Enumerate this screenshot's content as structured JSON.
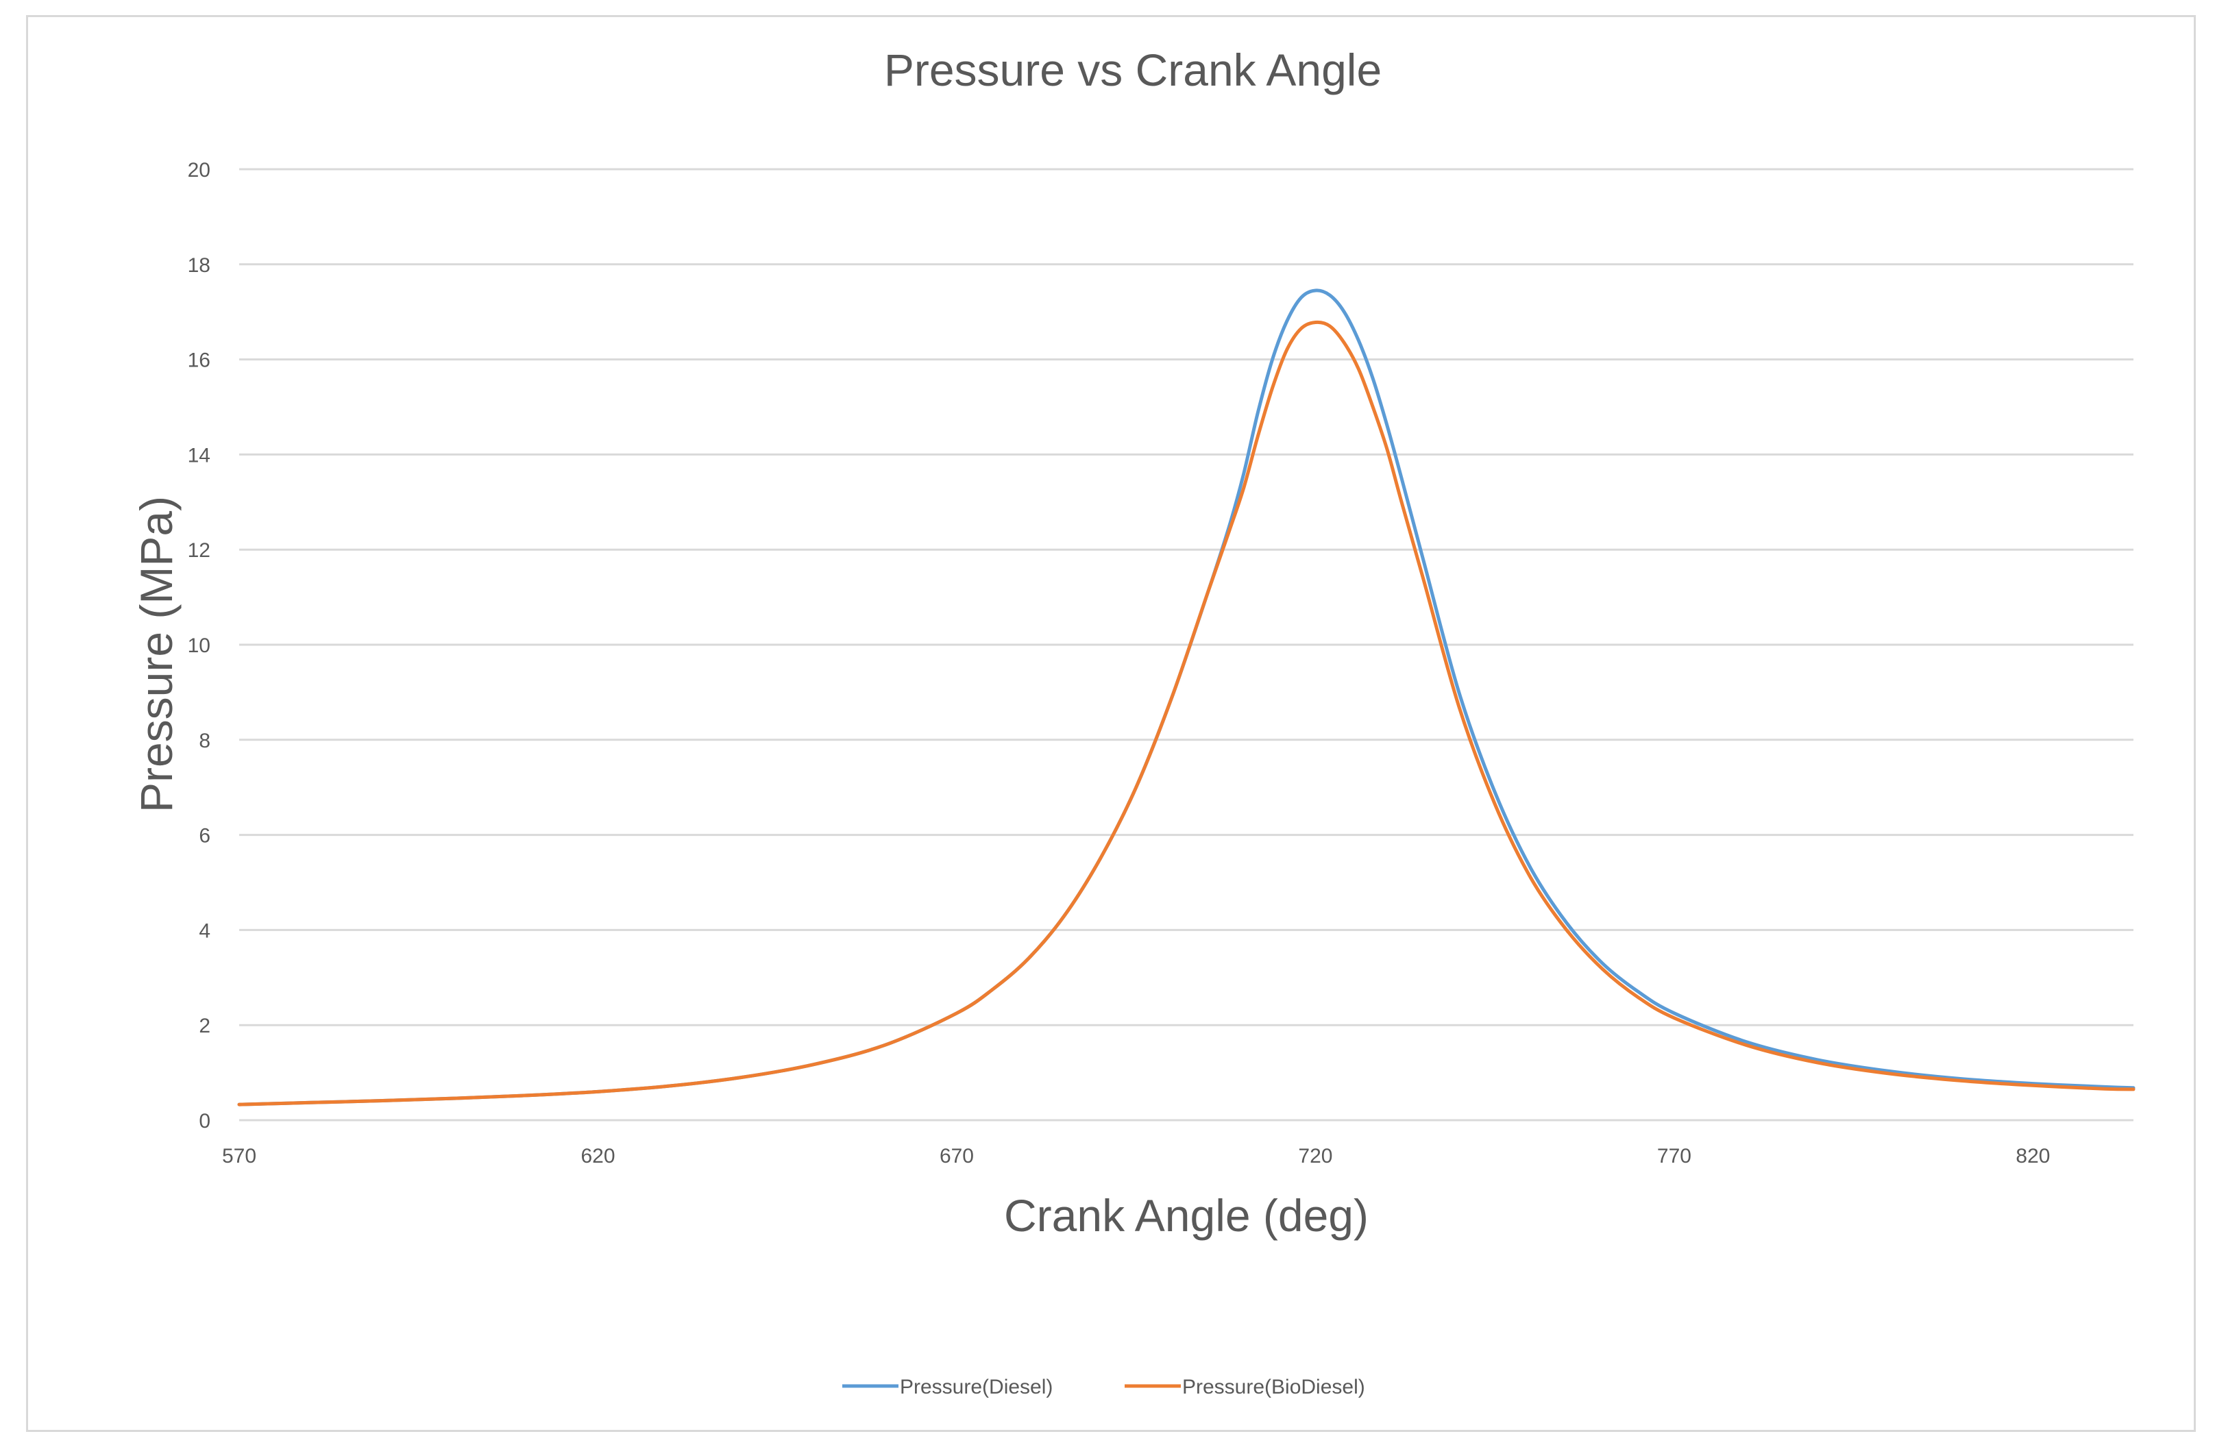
{
  "chart_data": {
    "type": "line",
    "title": "Pressure vs Crank Angle",
    "xlabel": "Crank Angle (deg)",
    "ylabel": "Pressure (MPa)",
    "xlim": [
      570,
      834
    ],
    "ylim": [
      0,
      20
    ],
    "x_ticks": [
      570,
      620,
      670,
      720,
      770,
      820
    ],
    "y_ticks": [
      0,
      2,
      4,
      6,
      8,
      10,
      12,
      14,
      16,
      18,
      20
    ],
    "grid": true,
    "legend_position": "bottom",
    "colors": {
      "diesel": "#5b9bd5",
      "biodiesel": "#ed7d31",
      "grid": "#d9d9d9",
      "text": "#595959"
    },
    "x": [
      570,
      580,
      590,
      600,
      610,
      620,
      630,
      640,
      650,
      660,
      670,
      675,
      680,
      685,
      690,
      695,
      700,
      705,
      708,
      710,
      712,
      714,
      716,
      718,
      720,
      722,
      724,
      726,
      728,
      730,
      732,
      735,
      740,
      745,
      750,
      755,
      760,
      765,
      770,
      780,
      790,
      800,
      810,
      820,
      830,
      834
    ],
    "series": [
      {
        "name": "Pressure(Diesel)",
        "color": "#5b9bd5",
        "values": [
          0.33,
          0.37,
          0.41,
          0.46,
          0.52,
          0.6,
          0.72,
          0.9,
          1.17,
          1.58,
          2.25,
          2.75,
          3.4,
          4.3,
          5.5,
          7.0,
          8.9,
          11.1,
          12.5,
          13.6,
          14.9,
          16.0,
          16.8,
          17.3,
          17.45,
          17.35,
          17.0,
          16.4,
          15.6,
          14.6,
          13.5,
          11.8,
          9.0,
          6.9,
          5.3,
          4.15,
          3.3,
          2.7,
          2.25,
          1.65,
          1.27,
          1.03,
          0.87,
          0.77,
          0.7,
          0.68
        ]
      },
      {
        "name": "Pressure(BioDiesel)",
        "color": "#ed7d31",
        "values": [
          0.33,
          0.37,
          0.41,
          0.46,
          0.52,
          0.6,
          0.72,
          0.9,
          1.17,
          1.58,
          2.25,
          2.75,
          3.4,
          4.3,
          5.5,
          7.0,
          8.9,
          11.1,
          12.4,
          13.3,
          14.4,
          15.4,
          16.2,
          16.65,
          16.78,
          16.7,
          16.35,
          15.8,
          15.0,
          14.1,
          13.0,
          11.4,
          8.7,
          6.65,
          5.1,
          4.0,
          3.18,
          2.58,
          2.15,
          1.58,
          1.21,
          0.98,
          0.83,
          0.73,
          0.66,
          0.65
        ]
      }
    ]
  }
}
